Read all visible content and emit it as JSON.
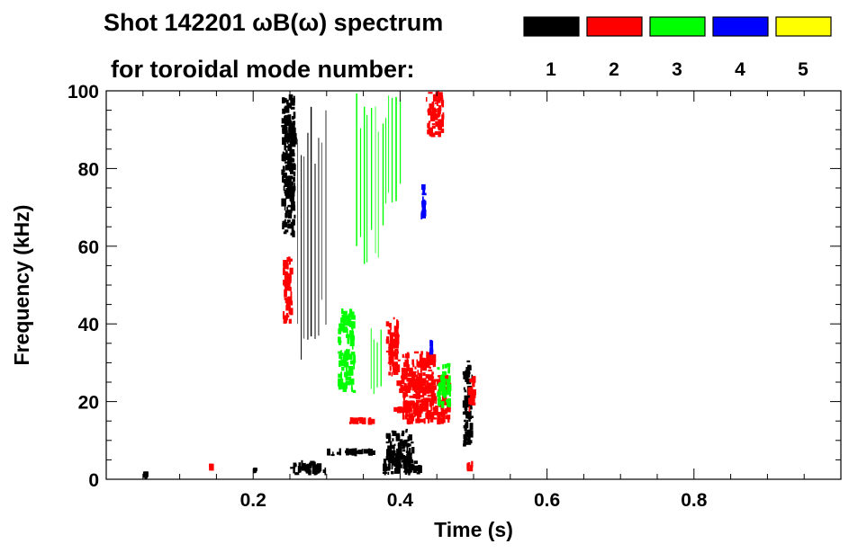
{
  "chart_data": {
    "type": "heatmap",
    "title_line1": "Shot 142201 ωB(ω) spectrum",
    "title_line2": "for toroidal mode number:",
    "xlabel": "Time (s)",
    "ylabel": "Frequency (kHz)",
    "xlim": [
      0.0,
      1.0
    ],
    "ylim": [
      0,
      100
    ],
    "x_ticks": [
      0.2,
      0.4,
      0.6,
      0.8
    ],
    "y_ticks": [
      0,
      20,
      40,
      60,
      80,
      100
    ],
    "legend": [
      {
        "n": "1",
        "color": "#000000"
      },
      {
        "n": "2",
        "color": "#ff0000"
      },
      {
        "n": "3",
        "color": "#00ff00"
      },
      {
        "n": "4",
        "color": "#0000ff"
      },
      {
        "n": "5",
        "color": "#ffff00"
      }
    ],
    "legend_placement": "top-right",
    "grid": false,
    "regions": [
      {
        "n": 1,
        "t0": 0.238,
        "t1": 0.258,
        "f0": 62,
        "f1": 100
      },
      {
        "n": 1,
        "t0": 0.245,
        "t1": 0.26,
        "f0": 72,
        "f1": 92
      },
      {
        "n": 1,
        "t0": 0.26,
        "t1": 0.3,
        "f0": 30,
        "f1": 98,
        "striped": true
      },
      {
        "n": 1,
        "t0": 0.38,
        "t1": 0.42,
        "f0": 4,
        "f1": 13
      },
      {
        "n": 1,
        "t0": 0.375,
        "t1": 0.43,
        "f0": 1,
        "f1": 6
      },
      {
        "n": 1,
        "t0": 0.485,
        "t1": 0.5,
        "f0": 8,
        "f1": 31
      },
      {
        "n": 1,
        "t0": 0.3,
        "t1": 0.37,
        "f0": 6,
        "f1": 8
      },
      {
        "n": 1,
        "t0": 0.25,
        "t1": 0.3,
        "f0": 1,
        "f1": 5
      },
      {
        "n": 1,
        "t0": 0.05,
        "t1": 0.06,
        "f0": 1,
        "f1": 2
      },
      {
        "n": 1,
        "t0": 0.2,
        "t1": 0.205,
        "f0": 2,
        "f1": 3
      },
      {
        "n": 2,
        "t0": 0.24,
        "t1": 0.255,
        "f0": 40,
        "f1": 58
      },
      {
        "n": 2,
        "t0": 0.38,
        "t1": 0.4,
        "f0": 26,
        "f1": 42
      },
      {
        "n": 2,
        "t0": 0.4,
        "t1": 0.47,
        "f0": 14,
        "f1": 27
      },
      {
        "n": 2,
        "t0": 0.395,
        "t1": 0.45,
        "f0": 22,
        "f1": 33
      },
      {
        "n": 2,
        "t0": 0.435,
        "t1": 0.46,
        "f0": 88,
        "f1": 100
      },
      {
        "n": 2,
        "t0": 0.492,
        "t1": 0.505,
        "f0": 17,
        "f1": 27
      },
      {
        "n": 2,
        "t0": 0.33,
        "t1": 0.37,
        "f0": 14,
        "f1": 16
      },
      {
        "n": 2,
        "t0": 0.39,
        "t1": 0.44,
        "f0": 17,
        "f1": 19
      },
      {
        "n": 2,
        "t0": 0.14,
        "t1": 0.145,
        "f0": 3,
        "f1": 4
      },
      {
        "n": 2,
        "t0": 0.49,
        "t1": 0.5,
        "f0": 2,
        "f1": 5
      },
      {
        "n": 3,
        "t0": 0.315,
        "t1": 0.34,
        "f0": 22,
        "f1": 44
      },
      {
        "n": 3,
        "t0": 0.34,
        "t1": 0.38,
        "f0": 55,
        "f1": 100,
        "striped": true
      },
      {
        "n": 3,
        "t0": 0.38,
        "t1": 0.4,
        "f0": 70,
        "f1": 100,
        "striped": true
      },
      {
        "n": 3,
        "t0": 0.45,
        "t1": 0.47,
        "f0": 18,
        "f1": 30
      },
      {
        "n": 3,
        "t0": 0.36,
        "t1": 0.375,
        "f0": 20,
        "f1": 40,
        "striped": true
      },
      {
        "n": 4,
        "t0": 0.428,
        "t1": 0.436,
        "f0": 66,
        "f1": 76
      },
      {
        "n": 4,
        "t0": 0.44,
        "t1": 0.445,
        "f0": 32,
        "f1": 36
      }
    ]
  }
}
